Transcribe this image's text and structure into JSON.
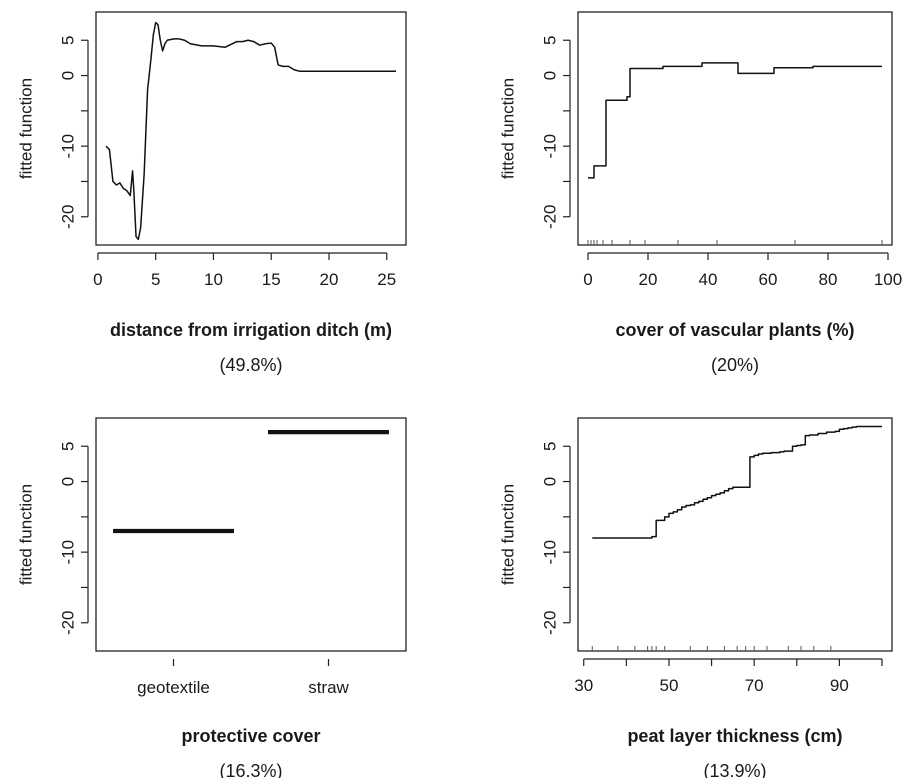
{
  "chart_data": [
    {
      "type": "line",
      "ylabel": "fitted function",
      "xlabel": "distance from irrigation ditch (m)",
      "importance": "(49.8%)",
      "xlim": [
        0,
        26
      ],
      "ylim": [
        -24,
        9
      ],
      "xticks": [
        0,
        5,
        10,
        15,
        20,
        25
      ],
      "yticks": [
        5,
        0,
        -10,
        -20
      ],
      "yticks_minor": [
        -5,
        -15
      ],
      "x": [
        0.7,
        1.0,
        1.3,
        1.6,
        1.9,
        2.2,
        2.5,
        2.8,
        3.0,
        3.1,
        3.3,
        3.5,
        3.7,
        4.0,
        4.3,
        4.6,
        4.8,
        5.0,
        5.2,
        5.4,
        5.6,
        5.8,
        6.0,
        6.3,
        6.6,
        7.0,
        7.5,
        8.0,
        9.0,
        10.0,
        11.0,
        12.0,
        12.5,
        13.0,
        13.5,
        14.0,
        14.5,
        15.0,
        15.3,
        15.6,
        16.0,
        16.5,
        17.0,
        17.5,
        18.0,
        20.0,
        22.0,
        24.0,
        25.8
      ],
      "y": [
        -10.0,
        -10.5,
        -15.0,
        -15.5,
        -15.2,
        -16.0,
        -16.3,
        -17.0,
        -13.5,
        -16.0,
        -22.8,
        -23.2,
        -21.5,
        -14.0,
        -2.0,
        2.5,
        5.8,
        7.5,
        7.2,
        5.0,
        3.5,
        4.5,
        5.0,
        5.1,
        5.2,
        5.2,
        5.0,
        4.5,
        4.2,
        4.2,
        4.0,
        4.8,
        4.8,
        5.0,
        4.8,
        4.3,
        4.5,
        4.6,
        4.0,
        1.5,
        1.3,
        1.3,
        0.8,
        0.6,
        0.6,
        0.6,
        0.6,
        0.6,
        0.6
      ],
      "rug": []
    },
    {
      "type": "line",
      "ylabel": "fitted function",
      "xlabel": "cover of vascular plants (%)",
      "importance": "(20%)",
      "xlim": [
        0,
        100
      ],
      "ylim": [
        -24,
        9
      ],
      "xticks": [
        0,
        20,
        40,
        60,
        80,
        100
      ],
      "yticks": [
        5,
        0,
        -10,
        -20
      ],
      "yticks_minor": [
        -5,
        -15
      ],
      "step": true,
      "x": [
        0,
        1,
        2,
        5,
        6,
        12,
        13,
        14,
        25,
        38,
        44,
        50,
        62,
        75,
        98
      ],
      "y": [
        -14.5,
        -14.5,
        -12.8,
        -12.8,
        -3.5,
        -3.5,
        -3.0,
        1.0,
        1.3,
        1.8,
        1.8,
        0.3,
        1.1,
        1.3,
        1.3
      ],
      "rug": [
        0,
        1,
        2,
        3,
        5,
        8,
        14,
        19,
        30,
        43,
        69,
        98
      ]
    },
    {
      "type": "bar",
      "ylabel": "fitted function",
      "xlabel": "protective cover",
      "importance": "(16.3%)",
      "ylim": [
        -24,
        9
      ],
      "yticks": [
        5,
        0,
        -10,
        -20
      ],
      "yticks_minor": [
        -5,
        -15
      ],
      "categories": [
        "geotextile",
        "straw"
      ],
      "values": [
        -7,
        7
      ]
    },
    {
      "type": "line",
      "ylabel": "fitted function",
      "xlabel": "peat layer thickness (cm)",
      "importance": "(13.9%)",
      "xlim": [
        30,
        100
      ],
      "ylim": [
        -24,
        9
      ],
      "xticks": [
        30,
        40,
        50,
        60,
        70,
        80,
        90,
        100
      ],
      "xtick_labels": [
        "30",
        "",
        "50",
        "",
        "70",
        "",
        "90",
        ""
      ],
      "yticks": [
        5,
        0,
        -10,
        -20
      ],
      "yticks_minor": [
        -5,
        -15
      ],
      "step": true,
      "x": [
        32,
        38,
        43,
        46,
        47,
        49,
        50,
        51,
        52,
        53,
        54,
        55,
        56,
        57,
        58,
        59,
        60,
        61,
        62,
        63,
        64,
        65,
        66,
        67,
        68,
        69,
        70,
        71,
        72,
        73,
        74,
        75,
        76,
        77,
        78,
        79,
        80,
        81,
        82,
        83,
        84,
        85,
        86,
        87,
        88,
        89,
        90,
        91,
        92,
        93,
        94,
        95,
        96,
        97,
        98,
        99,
        100
      ],
      "y": [
        -8,
        -8,
        -8,
        -7.8,
        -5.5,
        -5.0,
        -4.5,
        -4.3,
        -4.0,
        -3.6,
        -3.4,
        -3.3,
        -3.0,
        -2.8,
        -2.5,
        -2.3,
        -2.0,
        -1.8,
        -1.6,
        -1.3,
        -1.0,
        -0.8,
        -0.8,
        -0.8,
        -0.8,
        3.5,
        3.7,
        3.9,
        4.0,
        4.0,
        4.1,
        4.1,
        4.2,
        4.3,
        4.3,
        5.0,
        5.1,
        5.2,
        6.5,
        6.6,
        6.6,
        6.8,
        6.8,
        7.0,
        7.0,
        7.1,
        7.4,
        7.5,
        7.6,
        7.7,
        7.8,
        7.8,
        7.8,
        7.8,
        7.8,
        7.8,
        7.8
      ],
      "rug": [
        32,
        38,
        42,
        45,
        46,
        47,
        49,
        55,
        59,
        63,
        66,
        68,
        70,
        73,
        78,
        81,
        84,
        88
      ]
    }
  ]
}
